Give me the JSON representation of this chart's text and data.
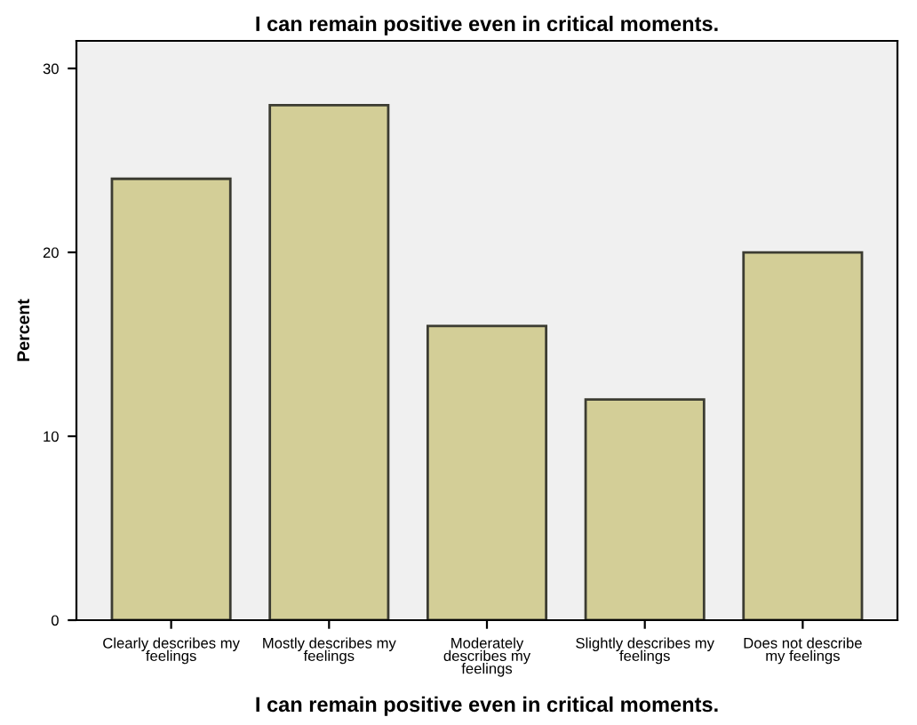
{
  "chart_data": {
    "type": "bar",
    "title": "I can remain positive even in critical moments.",
    "xlabel": "I can remain positive even in critical moments.",
    "ylabel": "Percent",
    "categories": [
      "Clearly describes my\nfeelings",
      "Mostly describes my\nfeelings",
      "Moderately\ndescribes my\nfeelings",
      "Slightly describes my\nfeelings",
      "Does not describe\nmy feelings"
    ],
    "values": [
      24,
      28,
      16,
      12,
      20
    ],
    "color": "#d3ce97",
    "ylim": [
      0,
      31.5
    ],
    "yticks": [
      0,
      10,
      20,
      30
    ],
    "grid": false
  }
}
